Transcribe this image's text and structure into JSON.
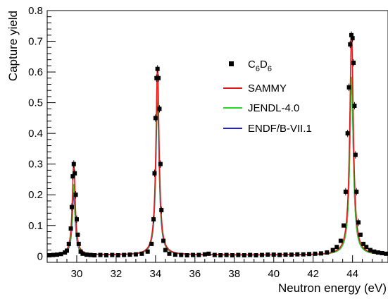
{
  "chart_data": {
    "type": "scatter",
    "xlabel": "Neutron energy (eV)",
    "ylabel": "Capture yield",
    "xlim": [
      28.5,
      45.8
    ],
    "ylim": [
      -0.02,
      0.8
    ],
    "x_ticks": [
      "30",
      "32",
      "34",
      "36",
      "38",
      "40",
      "42",
      "44"
    ],
    "y_ticks": [
      "0",
      "0.1",
      "0.2",
      "0.3",
      "0.4",
      "0.5",
      "0.6",
      "0.7",
      "0.8"
    ],
    "legend_position": "center-right",
    "colors": {
      "data": "#000000",
      "SAMMY": "#e31a1c",
      "JENDL": "#22dd22",
      "ENDF": "#1f1fd6"
    },
    "legend": [
      {
        "label_main": "C",
        "sub1": "6",
        "label_mid": "D",
        "sub2": "6",
        "marker": "square"
      },
      {
        "label": "SAMMY",
        "marker": "line"
      },
      {
        "label": "JENDL-4.0",
        "marker": "line"
      },
      {
        "label": "ENDF/B-VII.1",
        "marker": "line"
      }
    ],
    "resonances": [
      {
        "center": 29.85,
        "sammy": 0.3,
        "jendl": 0.23,
        "endf": 0.2,
        "width": 0.09
      },
      {
        "center": 34.1,
        "sammy": 0.61,
        "jendl": 0.55,
        "endf": 0.51,
        "width": 0.1
      },
      {
        "center": 43.95,
        "sammy": 0.72,
        "jendl": 0.58,
        "endf": 0.57,
        "width": 0.11
      }
    ],
    "series": [
      {
        "name": "C6D6",
        "x": [
          28.6,
          28.8,
          29.0,
          29.2,
          29.4,
          29.5,
          29.6,
          29.7,
          29.75,
          29.8,
          29.85,
          29.9,
          29.95,
          30.0,
          30.05,
          30.1,
          30.2,
          30.3,
          30.5,
          30.7,
          30.9,
          31.2,
          31.5,
          31.8,
          32.1,
          32.4,
          32.7,
          33.0,
          33.3,
          33.6,
          33.8,
          33.9,
          33.95,
          34.0,
          34.05,
          34.1,
          34.15,
          34.2,
          34.25,
          34.3,
          34.4,
          34.5,
          34.7,
          35.0,
          35.3,
          35.6,
          35.9,
          36.2,
          36.5,
          36.7,
          37.0,
          37.3,
          37.6,
          37.9,
          38.2,
          38.5,
          38.8,
          39.1,
          39.4,
          39.7,
          40.0,
          40.3,
          40.6,
          40.9,
          41.2,
          41.5,
          41.8,
          42.1,
          42.4,
          42.7,
          43.0,
          43.2,
          43.4,
          43.55,
          43.65,
          43.75,
          43.82,
          43.88,
          43.94,
          44.0,
          44.05,
          44.1,
          44.15,
          44.2,
          44.3,
          44.4,
          44.55,
          44.7,
          44.9,
          45.1,
          45.3,
          45.5,
          45.7
        ],
        "y": [
          0.003,
          0.004,
          0.005,
          0.007,
          0.012,
          0.018,
          0.04,
          0.09,
          0.16,
          0.26,
          0.3,
          0.27,
          0.2,
          0.12,
          0.07,
          0.04,
          0.015,
          0.008,
          0.005,
          0.004,
          0.003,
          0.004,
          0.003,
          0.004,
          0.003,
          0.004,
          0.005,
          0.006,
          0.008,
          0.015,
          0.04,
          0.12,
          0.27,
          0.45,
          0.58,
          0.61,
          0.58,
          0.48,
          0.3,
          0.15,
          0.05,
          0.02,
          0.008,
          0.005,
          0.004,
          0.003,
          0.004,
          0.004,
          0.006,
          0.008,
          0.004,
          0.003,
          0.004,
          0.003,
          0.004,
          0.003,
          0.004,
          0.003,
          0.004,
          0.005,
          0.005,
          0.004,
          0.005,
          0.005,
          0.006,
          0.006,
          0.007,
          0.008,
          0.009,
          0.012,
          0.02,
          0.03,
          0.05,
          0.1,
          0.21,
          0.4,
          0.55,
          0.69,
          0.72,
          0.71,
          0.63,
          0.49,
          0.33,
          0.21,
          0.11,
          0.07,
          0.04,
          0.03,
          0.02,
          0.015,
          0.012,
          0.01,
          0.008
        ]
      }
    ]
  }
}
